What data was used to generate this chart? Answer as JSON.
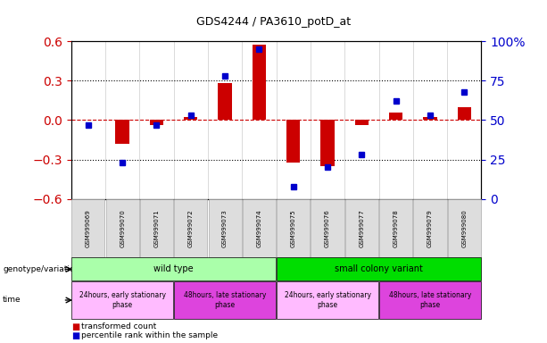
{
  "title": "GDS4244 / PA3610_potD_at",
  "samples": [
    "GSM999069",
    "GSM999070",
    "GSM999071",
    "GSM999072",
    "GSM999073",
    "GSM999074",
    "GSM999075",
    "GSM999076",
    "GSM999077",
    "GSM999078",
    "GSM999079",
    "GSM999080"
  ],
  "bar_values": [
    0.0,
    -0.18,
    -0.04,
    0.02,
    0.28,
    0.57,
    -0.32,
    -0.35,
    -0.04,
    0.06,
    0.02,
    0.1
  ],
  "dot_values_pct": [
    47,
    23,
    47,
    53,
    78,
    95,
    8,
    20,
    28,
    62,
    53,
    68
  ],
  "ylim_left": [
    -0.6,
    0.6
  ],
  "ylim_right": [
    0,
    100
  ],
  "yticks_left": [
    -0.6,
    -0.3,
    0.0,
    0.3,
    0.6
  ],
  "yticks_right": [
    0,
    25,
    50,
    75,
    100
  ],
  "bar_color": "#cc0000",
  "dot_color": "#0000cc",
  "dashed_line_color": "#cc0000",
  "grid_color": "#000000",
  "genotype_groups": [
    {
      "label": "wild type",
      "start": 0,
      "end": 6,
      "color": "#aaffaa"
    },
    {
      "label": "small colony variant",
      "start": 6,
      "end": 12,
      "color": "#00dd00"
    }
  ],
  "time_groups": [
    {
      "label": "24hours, early stationary\nphase",
      "start": 0,
      "end": 3,
      "color": "#ffbbff"
    },
    {
      "label": "48hours, late stationary\nphase",
      "start": 3,
      "end": 6,
      "color": "#dd44dd"
    },
    {
      "label": "24hours, early stationary\nphase",
      "start": 6,
      "end": 9,
      "color": "#ffbbff"
    },
    {
      "label": "48hours, late stationary\nphase",
      "start": 9,
      "end": 12,
      "color": "#dd44dd"
    }
  ],
  "legend_bar_label": "transformed count",
  "legend_dot_label": "percentile rank within the sample",
  "genotype_label": "genotype/variation",
  "time_label": "time",
  "tick_label_bg": "#dddddd",
  "tick_label_border": "#aaaaaa"
}
